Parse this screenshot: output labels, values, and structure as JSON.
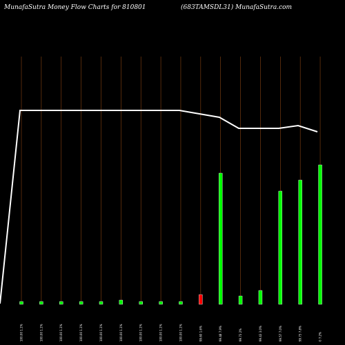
{
  "header": {
    "left_title": "MunafaSutra  Money Flow  Charts for 810801",
    "right_title": "(683TAMSDL31) MunafaSutra.com"
  },
  "colors": {
    "background": "#000000",
    "gridline": "#8b4513",
    "line": "#ffffff",
    "bar_up": "#00ff00",
    "bar_down": "#ff0000",
    "text": "#ffffff"
  },
  "chart_data": {
    "type": "bar",
    "title": "",
    "grid": true,
    "categories": [
      "100.00  1.1%",
      "100.00  1.1%",
      "100.00  1.1%",
      "100.00  1.1%",
      "100.00  1.1%",
      "100.00  1.1%",
      "100.00  1.1%",
      "100.00  1.1%",
      "100.00  1.1%",
      "99.60  1.6%",
      "99.48  7.9%",
      "99.73  2%",
      "99.43  3.0%",
      "99.57  7.0%",
      "99.73  7.8%",
      "0  7.2%"
    ],
    "bar_values": [
      1.1,
      1.1,
      1.1,
      1.1,
      1.1,
      1.1,
      1.1,
      1.1,
      1.1,
      1.6,
      7.9,
      2.0,
      3.0,
      7.0,
      7.8,
      7.2
    ],
    "bar_heights_pct": [
      2,
      2,
      2,
      2,
      2,
      3,
      2,
      2,
      2,
      7,
      95,
      6,
      10,
      82,
      90,
      101
    ],
    "bar_colors": [
      "green",
      "green",
      "green",
      "green",
      "green",
      "green",
      "green",
      "green",
      "green",
      "red",
      "green",
      "green",
      "green",
      "green",
      "green",
      "green"
    ],
    "line_values": [
      99.6,
      100,
      100,
      100,
      100,
      100,
      100,
      100,
      100,
      100,
      99.8,
      99.6,
      99.3,
      99.3,
      99.35,
      99.4,
      99.2
    ],
    "line_ylim": [
      95,
      102
    ],
    "line_prices": [
      100.0,
      100.0,
      100.0,
      100.0,
      100.0,
      100.0,
      100.0,
      100.0,
      100.0,
      99.6,
      99.48,
      99.73,
      99.43,
      99.57,
      99.73
    ]
  }
}
